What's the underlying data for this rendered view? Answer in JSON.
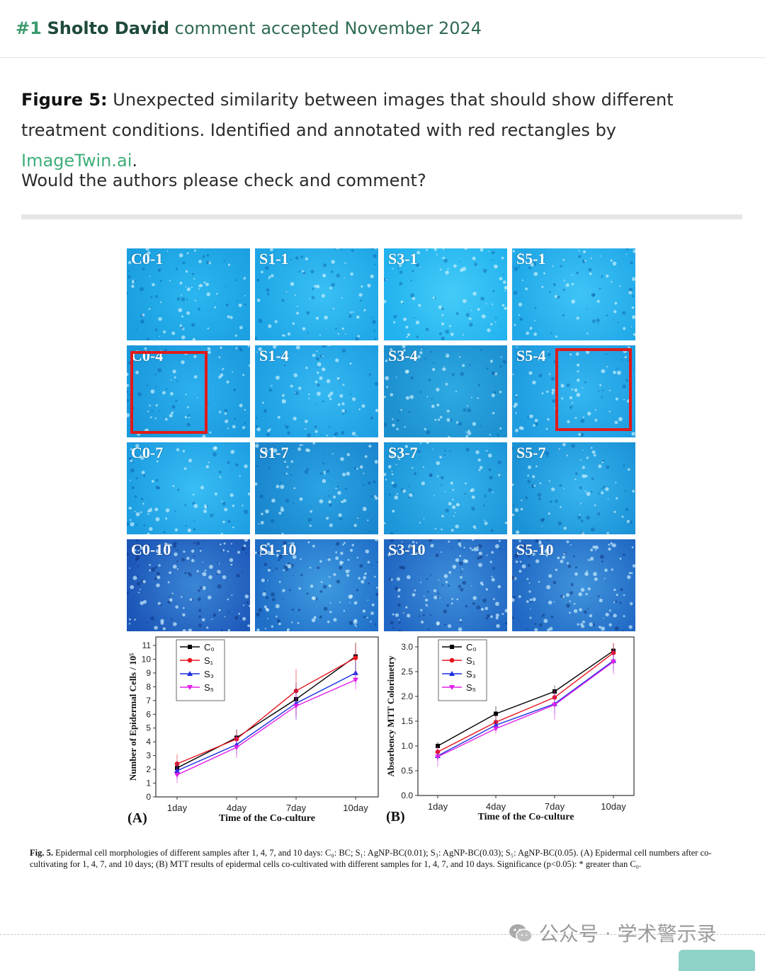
{
  "header": {
    "number": "#1",
    "author": "Sholto David",
    "status_text": "comment accepted November 2024"
  },
  "comment": {
    "figure_label": "Figure 5:",
    "text_before_link": " Unexpected similarity between images that should show different treatment conditions. Identified and annotated with red rectangles by ",
    "link_text": "ImageTwin.ai",
    "text_after_link": ".",
    "question": "Would the authors please check and comment?"
  },
  "figure": {
    "tiles": [
      {
        "label": "C0-1",
        "colors": [
          "#1b9fe0",
          "#2ab6f0"
        ]
      },
      {
        "label": "S1-1",
        "colors": [
          "#1ea6e6",
          "#39c0f4"
        ]
      },
      {
        "label": "S3-1",
        "colors": [
          "#22b2ee",
          "#44cbf8"
        ]
      },
      {
        "label": "S5-1",
        "colors": [
          "#20a8e8",
          "#3fc4f6"
        ]
      },
      {
        "label": "C0-4",
        "colors": [
          "#1a98dc",
          "#2cb0ee"
        ]
      },
      {
        "label": "S1-4",
        "colors": [
          "#1e9fe2",
          "#34b8f2"
        ]
      },
      {
        "label": "S3-4",
        "colors": [
          "#1c8fcf",
          "#2da9e2"
        ]
      },
      {
        "label": "S5-4",
        "colors": [
          "#1e9ce0",
          "#33b6f0"
        ]
      },
      {
        "label": "C0-7",
        "colors": [
          "#1d9ee2",
          "#38bdf4"
        ]
      },
      {
        "label": "S1-7",
        "colors": [
          "#1a86cd",
          "#2aa3e4"
        ]
      },
      {
        "label": "S3-7",
        "colors": [
          "#1c96d8",
          "#35b3ee"
        ]
      },
      {
        "label": "S5-7",
        "colors": [
          "#1b92d6",
          "#37b4ef"
        ]
      },
      {
        "label": "C0-10",
        "colors": [
          "#1c56b8",
          "#3a86d6"
        ]
      },
      {
        "label": "S1-10",
        "colors": [
          "#1f6ec8",
          "#3f9be0"
        ]
      },
      {
        "label": "S3-10",
        "colors": [
          "#2166c2",
          "#3d8fdb"
        ]
      },
      {
        "label": "S5-10",
        "colors": [
          "#2068c4",
          "#4094dc"
        ]
      }
    ],
    "highlighted_tiles": [
      "C0-4",
      "S5-4"
    ]
  },
  "chart_data": [
    {
      "type": "line",
      "panel_label": "(A)",
      "xlabel": "Time of the Co-culture",
      "ylabel": "Number of Epidermal Cells / 10⁵",
      "categories": [
        "1day",
        "4day",
        "7day",
        "10day"
      ],
      "ylim": [
        0,
        11
      ],
      "yticks": [
        "0",
        "1",
        "2",
        "3",
        "4",
        "5",
        "6",
        "7",
        "8",
        "9",
        "10",
        "11"
      ],
      "series": [
        {
          "name": "C₀",
          "color": "#000000",
          "marker": "square",
          "values": [
            2.1,
            4.3,
            7.1,
            10.2
          ],
          "errors": [
            0.5,
            0.6,
            1.2,
            1.0
          ]
        },
        {
          "name": "S₁",
          "color": "#e8141e",
          "marker": "circle",
          "values": [
            2.4,
            4.2,
            7.7,
            10.1
          ],
          "errors": [
            0.7,
            0.6,
            1.6,
            1.0
          ]
        },
        {
          "name": "S₃",
          "color": "#1a2fe0",
          "marker": "triangle",
          "values": [
            1.9,
            3.8,
            6.8,
            9.0
          ],
          "errors": [
            0.6,
            0.7,
            1.2,
            0.8
          ]
        },
        {
          "name": "S₅",
          "color": "#e020e8",
          "marker": "triangle-down",
          "values": [
            1.6,
            3.6,
            6.6,
            8.5
          ],
          "errors": [
            0.6,
            0.8,
            0.9,
            0.7
          ]
        }
      ]
    },
    {
      "type": "line",
      "panel_label": "(B)",
      "xlabel": "Time of the Co-culture",
      "ylabel": "Absorbency MTT Colorimetry",
      "categories": [
        "1day",
        "4day",
        "7day",
        "10day"
      ],
      "ylim": [
        0,
        3.0
      ],
      "yticks": [
        "0.0",
        "0.5",
        "1.0",
        "1.5",
        "2.0",
        "2.5",
        "3.0"
      ],
      "series": [
        {
          "name": "C₀",
          "color": "#000000",
          "marker": "square",
          "values": [
            1.0,
            1.65,
            2.1,
            2.92
          ],
          "errors": [
            0.08,
            0.15,
            0.12,
            0.15
          ]
        },
        {
          "name": "S₁",
          "color": "#e8141e",
          "marker": "circle",
          "values": [
            0.88,
            1.48,
            1.98,
            2.88
          ],
          "errors": [
            0.1,
            0.12,
            0.15,
            0.2
          ]
        },
        {
          "name": "S₃",
          "color": "#1a2fe0",
          "marker": "triangle",
          "values": [
            0.8,
            1.42,
            1.85,
            2.72
          ],
          "errors": [
            0.1,
            0.12,
            0.2,
            0.2
          ]
        },
        {
          "name": "S₅",
          "color": "#e020e8",
          "marker": "triangle-down",
          "values": [
            0.78,
            1.35,
            1.83,
            2.7
          ],
          "errors": [
            0.2,
            0.1,
            0.3,
            0.25
          ]
        }
      ]
    }
  ],
  "caption": {
    "label": "Fig. 5.",
    "text": " Epidermal cell morphologies of different samples after 1, 4, 7, and 10 days: C₀: BC; S₁: AgNP-BC(0.01); S₃: AgNP-BC(0.03); S₅: AgNP-BC(0.05). (A) Epidermal cell numbers after co-cultivating for 1, 4, 7, and 10 days; (B) MTT results of epidermal cells co-cultivated with different samples for 1, 4, 7, and 10 days. Significance (p<0.05): * greater than C₀."
  },
  "watermark": {
    "text": "公众号 · 学术警示录",
    "icon": "wechat-icon"
  }
}
